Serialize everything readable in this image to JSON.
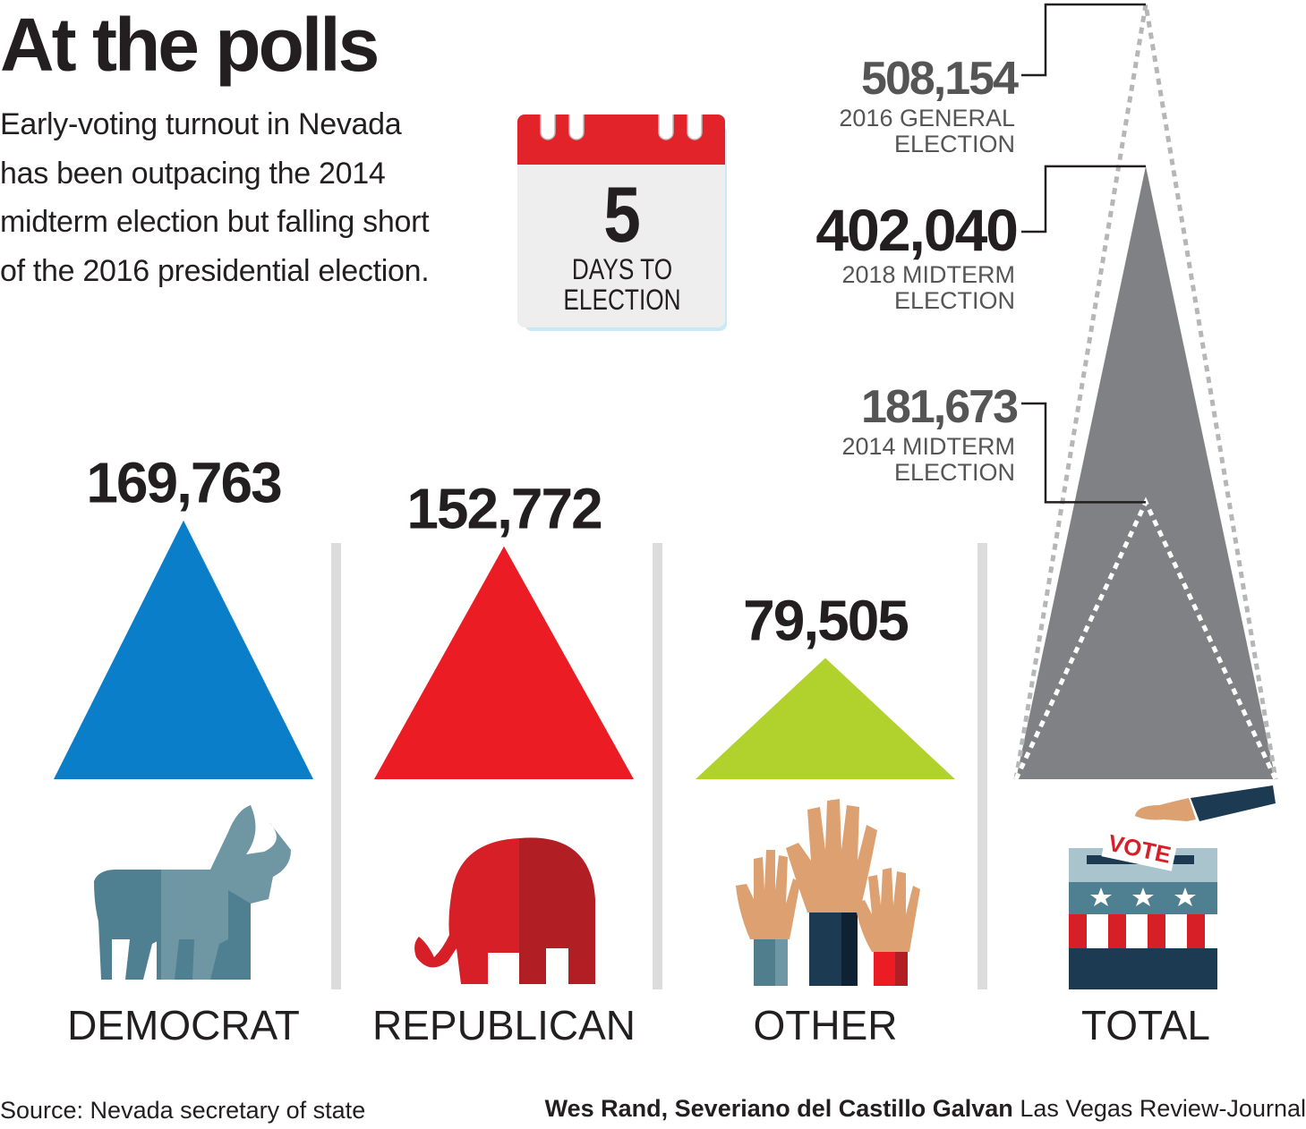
{
  "title": "At the polls",
  "subtitle": "Early-voting turnout in Nevada has been outpacing the 2014 midterm election but falling short of the 2016 presidential election.",
  "countdown": {
    "number": "5",
    "line1": "DAYS TO",
    "line2": "ELECTION"
  },
  "colors": {
    "democrat": "#0a7ec8",
    "republican": "#ec1c24",
    "other": "#b1d12d",
    "total": "#808184",
    "separator": "#dcdcdc",
    "text": "#231f20"
  },
  "chart_data": {
    "type": "bar",
    "mark": "triangle",
    "categories": [
      "DEMOCRAT",
      "REPUBLICAN",
      "OTHER",
      "TOTAL"
    ],
    "values": [
      169763,
      152772,
      79505,
      402040
    ],
    "value_labels": [
      "169,763",
      "152,772",
      "79,505",
      ""
    ],
    "comparisons": [
      {
        "value": 508154,
        "value_label": "508,154",
        "line1": "2016 GENERAL",
        "line2": "ELECTION",
        "style": "dotted-outline"
      },
      {
        "value": 402040,
        "value_label": "402,040",
        "line1": "2018 MIDTERM",
        "line2": "ELECTION",
        "style": "solid"
      },
      {
        "value": 181673,
        "value_label": "181,673",
        "line1": "2014 MIDTERM",
        "line2": "ELECTION",
        "style": "dotted-outline"
      }
    ],
    "icons": [
      "donkey-icon",
      "elephant-icon",
      "raised-hands-icon",
      "ballot-box-icon"
    ],
    "ballot_text": "VOTE"
  },
  "footer": {
    "source": "Source: Nevada secretary of state",
    "credit_names": "Wes Rand, Severiano del Castillo Galvan",
    "credit_outlet": " Las Vegas Review-Journal"
  }
}
